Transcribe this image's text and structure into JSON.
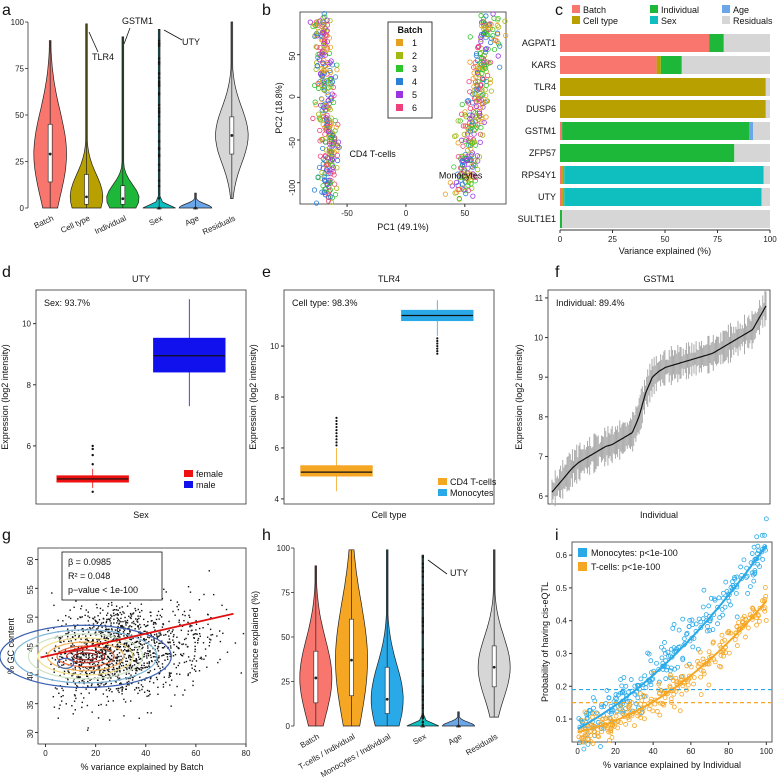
{
  "panel_letters": [
    "a",
    "b",
    "c",
    "d",
    "e",
    "f",
    "g",
    "h",
    "i"
  ],
  "colors": {
    "batch": "#f8766d",
    "celltype": "#b8a000",
    "individual": "#1db83a",
    "age": "#6aa6e8",
    "sex": "#0fbebf",
    "residuals": "#d6d6d6",
    "female": "#ee1111",
    "male": "#1111ee",
    "cd4": "#f5a623",
    "mono": "#29a9e8"
  },
  "chart_data": [
    {
      "panel": "a",
      "type": "violin",
      "ylabel": "Variance explained (%)",
      "yticks": [
        "0",
        "25",
        "50",
        "75",
        "100"
      ],
      "ylim": [
        0,
        100
      ],
      "categories": [
        "Batch",
        "Cell type",
        "Individual",
        "Sex",
        "Age",
        "Residuals"
      ],
      "median": [
        29,
        6,
        5,
        0,
        0,
        39
      ],
      "q1": [
        14,
        2,
        2,
        0,
        0,
        29
      ],
      "q3": [
        45,
        18,
        12,
        0,
        0,
        49
      ],
      "min": [
        0,
        0,
        0,
        0,
        0,
        5
      ],
      "max": [
        90,
        99,
        92,
        96,
        8,
        100
      ],
      "annotations": [
        "TLR4",
        "GSTM1",
        "UTY"
      ]
    },
    {
      "panel": "b",
      "type": "scatter",
      "xlabel": "PC1 (49.1%)",
      "ylabel": "PC2 (18.8%)",
      "xticks": [
        "-50",
        "0",
        "50"
      ],
      "yticks": [
        "-100",
        "-50",
        "0",
        "50"
      ],
      "xlim": [
        -90,
        85
      ],
      "ylim": [
        -125,
        100
      ],
      "legend_title": "Batch",
      "legend": [
        "1",
        "2",
        "3",
        "4",
        "5",
        "6"
      ],
      "legend_colors": [
        "#e6a01e",
        "#a3b815",
        "#2ec72b",
        "#2a7fd6",
        "#9b33e0",
        "#ef3f7c"
      ],
      "clusters": [
        "CD4 T-cells",
        "Monocytes"
      ]
    },
    {
      "panel": "c",
      "type": "bar",
      "xlabel": "Variance explained (%)",
      "xticks": [
        "0",
        "25",
        "50",
        "75",
        "100"
      ],
      "legend": [
        "Batch",
        "Cell type",
        "Individual",
        "Sex",
        "Age",
        "Residuals"
      ],
      "categories": [
        "AGPAT1",
        "KARS",
        "TLR4",
        "DUSP6",
        "GSTM1",
        "ZFP57",
        "RPS4Y1",
        "UTY",
        "SULT1E1"
      ],
      "series": [
        {
          "name": "Batch",
          "values": [
            71,
            46,
            0,
            0,
            1,
            0,
            1,
            1,
            0
          ]
        },
        {
          "name": "Cell type",
          "values": [
            0,
            2,
            98,
            98,
            0,
            0,
            1,
            1,
            0
          ]
        },
        {
          "name": "Individual",
          "values": [
            7,
            10,
            0,
            0,
            89,
            83,
            0,
            0,
            1
          ]
        },
        {
          "name": "Sex",
          "values": [
            0,
            0,
            0,
            0,
            0,
            0,
            95,
            94,
            0
          ]
        },
        {
          "name": "Age",
          "values": [
            0,
            0,
            0,
            0,
            2,
            0,
            0,
            0,
            0
          ]
        },
        {
          "name": "Residuals",
          "values": [
            22,
            42,
            2,
            2,
            8,
            17,
            3,
            4,
            99
          ]
        }
      ]
    },
    {
      "panel": "d",
      "type": "boxplot",
      "title": "UTY",
      "xlabel": "Sex",
      "ylabel": "Expression (log2 intensity)",
      "yticks": [
        "6",
        "8",
        "10"
      ],
      "ylim": [
        4.1,
        11.1
      ],
      "annotation": "Sex: 93.7%",
      "categories": [
        "female",
        "male"
      ],
      "median": [
        4.92,
        8.95
      ],
      "q1": [
        4.82,
        8.42
      ],
      "q3": [
        5.02,
        9.52
      ],
      "min": [
        4.62,
        7.3
      ],
      "max": [
        5.25,
        10.8
      ]
    },
    {
      "panel": "e",
      "type": "boxplot",
      "title": "TLR4",
      "xlabel": "Cell type",
      "ylabel": "Expression (log2 intensity)",
      "yticks": [
        "4",
        "6",
        "8",
        "10"
      ],
      "ylim": [
        3.8,
        12.2
      ],
      "annotation": "Cell type: 98.3%",
      "legend": [
        "CD4 T-cells",
        "Monocytes"
      ],
      "median": [
        5.05,
        11.2
      ],
      "q1": [
        4.9,
        11.0
      ],
      "q3": [
        5.3,
        11.4
      ],
      "min": [
        4.3,
        10.4
      ],
      "max": [
        6.0,
        11.8
      ]
    },
    {
      "panel": "f",
      "type": "line",
      "title": "GSTM1",
      "xlabel": "Individual",
      "ylabel": "Expression (log2 intensity)",
      "yticks": [
        "6",
        "7",
        "8",
        "9",
        "10",
        "11"
      ],
      "ylim": [
        5.8,
        11.2
      ],
      "annotation": "Individual: 89.4%",
      "sorted_means": [
        6.1,
        6.3,
        6.5,
        6.7,
        6.85,
        6.95,
        7.05,
        7.15,
        7.25,
        7.3,
        7.4,
        7.5,
        7.6,
        8.0,
        8.6,
        9.0,
        9.15,
        9.25,
        9.3,
        9.35,
        9.4,
        9.45,
        9.5,
        9.55,
        9.6,
        9.7,
        9.8,
        9.9,
        10.0,
        10.1,
        10.2,
        10.5,
        10.8
      ]
    },
    {
      "panel": "g",
      "type": "scatter",
      "xlabel": "% variance explained by Batch",
      "ylabel": "% GC content",
      "xticks": [
        "0",
        "20",
        "40",
        "60",
        "80"
      ],
      "yticks": [
        "30",
        "35",
        "40",
        "45",
        "50",
        "55",
        "60"
      ],
      "xlim": [
        -3,
        80
      ],
      "ylim": [
        28,
        62
      ],
      "stats": {
        "beta": "β = 0.0985",
        "r2": "R² = 0.048",
        "pvalue": "p−value < 1e-100"
      },
      "fit": {
        "intercept": 43.2,
        "slope": 0.0985
      }
    },
    {
      "panel": "h",
      "type": "violin",
      "ylabel": "Variance explained (%)",
      "yticks": [
        "0",
        "25",
        "50",
        "75",
        "100"
      ],
      "ylim": [
        0,
        100
      ],
      "categories": [
        "Batch",
        "T-cells / Individual",
        "Monocytes / Individual",
        "Sex",
        "Age",
        "Residuals"
      ],
      "median": [
        27,
        37,
        15,
        0,
        0,
        33
      ],
      "q1": [
        13,
        17,
        7,
        0,
        0,
        22
      ],
      "q3": [
        42,
        60,
        33,
        0,
        0,
        45
      ],
      "min": [
        0,
        0,
        0,
        0,
        0,
        5
      ],
      "max": [
        90,
        99,
        99,
        96,
        8,
        99
      ],
      "annotations": [
        "UTY"
      ]
    },
    {
      "panel": "i",
      "type": "scatter",
      "xlabel": "% variance explained by Individual",
      "ylabel": "Probability of having cis-eQTL",
      "xticks": [
        "0",
        "20",
        "40",
        "60",
        "80",
        "100"
      ],
      "yticks": [
        "0.1",
        "0.2",
        "0.3",
        "0.4",
        "0.5",
        "0.6"
      ],
      "xlim": [
        -3,
        103
      ],
      "ylim": [
        0.03,
        0.64
      ],
      "legend": [
        {
          "name": "Monocytes: p<1e-100"
        },
        {
          "name": "T-cells:       p<1e-100"
        }
      ],
      "thresholds": {
        "monocytes": 0.19,
        "tcells": 0.15
      }
    }
  ]
}
